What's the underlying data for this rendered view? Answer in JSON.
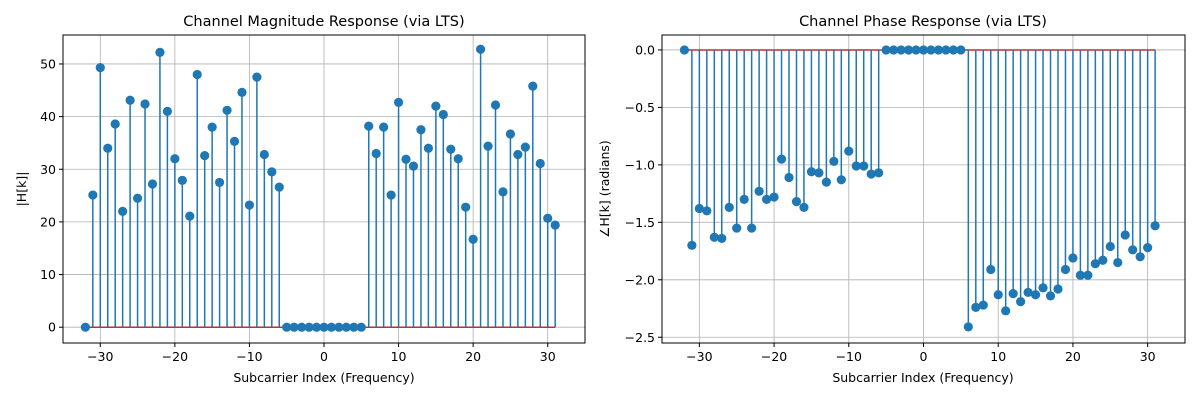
{
  "colors": {
    "stem": "#1f77b4",
    "marker": "#1f77b4",
    "baseline": "#d62728",
    "grid": "#b0b0b0"
  },
  "chart_data": [
    {
      "type": "stem",
      "title": "Channel Magnitude Response (via LTS)",
      "xlabel": "Subcarrier Index (Frequency)",
      "ylabel": "|H[k]|",
      "xlim": [
        -35,
        35
      ],
      "ylim": [
        -3,
        55.5
      ],
      "xticks": [
        -30,
        -20,
        -10,
        0,
        10,
        20,
        30
      ],
      "yticks": [
        0,
        10,
        20,
        30,
        40,
        50
      ],
      "ytick_labels": [
        "0",
        "10",
        "20",
        "30",
        "40",
        "50"
      ],
      "grid": true,
      "baseline": 0,
      "x": [
        -32,
        -31,
        -30,
        -29,
        -28,
        -27,
        -26,
        -25,
        -24,
        -23,
        -22,
        -21,
        -20,
        -19,
        -18,
        -17,
        -16,
        -15,
        -14,
        -13,
        -12,
        -11,
        -10,
        -9,
        -8,
        -7,
        -6,
        -5,
        -4,
        -3,
        -2,
        -1,
        0,
        1,
        2,
        3,
        4,
        5,
        6,
        7,
        8,
        9,
        10,
        11,
        12,
        13,
        14,
        15,
        16,
        17,
        18,
        19,
        20,
        21,
        22,
        23,
        24,
        25,
        26,
        27,
        28,
        29,
        30,
        31
      ],
      "values": [
        0,
        25.1,
        49.3,
        34.0,
        38.6,
        22.0,
        43.1,
        24.5,
        42.4,
        27.2,
        52.2,
        41.0,
        32.0,
        27.9,
        21.1,
        48.0,
        32.6,
        38.0,
        27.5,
        41.2,
        35.3,
        44.6,
        23.2,
        47.5,
        32.8,
        29.5,
        26.6,
        0,
        0,
        0,
        0,
        0,
        0,
        0,
        0,
        0,
        0,
        0,
        38.2,
        33.0,
        38.0,
        25.1,
        42.7,
        31.9,
        30.6,
        37.5,
        34.0,
        42.0,
        40.4,
        33.8,
        32.0,
        22.8,
        16.7,
        52.8,
        34.4,
        42.2,
        25.7,
        36.7,
        32.8,
        34.2,
        45.8,
        31.1,
        20.7,
        19.4
      ]
    },
    {
      "type": "stem",
      "title": "Channel Phase Response (via LTS)",
      "xlabel": "Subcarrier Index (Frequency)",
      "ylabel": "∠H[k] (radians)",
      "xlim": [
        -35,
        35
      ],
      "ylim": [
        -2.55,
        0.13
      ],
      "xticks": [
        -30,
        -20,
        -10,
        0,
        10,
        20,
        30
      ],
      "yticks": [
        0.0,
        -0.5,
        -1.0,
        -1.5,
        -2.0,
        -2.5
      ],
      "ytick_labels": [
        "0.0",
        "−0.5",
        "−1.0",
        "−1.5",
        "−2.0",
        "−2.5"
      ],
      "grid": true,
      "baseline": 0,
      "x": [
        -32,
        -31,
        -30,
        -29,
        -28,
        -27,
        -26,
        -25,
        -24,
        -23,
        -22,
        -21,
        -20,
        -19,
        -18,
        -17,
        -16,
        -15,
        -14,
        -13,
        -12,
        -11,
        -10,
        -9,
        -8,
        -7,
        -6,
        -5,
        -4,
        -3,
        -2,
        -1,
        0,
        1,
        2,
        3,
        4,
        5,
        6,
        7,
        8,
        9,
        10,
        11,
        12,
        13,
        14,
        15,
        16,
        17,
        18,
        19,
        20,
        21,
        22,
        23,
        24,
        25,
        26,
        27,
        28,
        29,
        30,
        31
      ],
      "values": [
        0,
        -1.7,
        -1.38,
        -1.4,
        -1.63,
        -1.64,
        -1.37,
        -1.55,
        -1.3,
        -1.55,
        -1.23,
        -1.3,
        -1.28,
        -0.95,
        -1.11,
        -1.32,
        -1.37,
        -1.06,
        -1.07,
        -1.15,
        -0.97,
        -1.13,
        -0.88,
        -1.01,
        -1.01,
        -1.08,
        -1.07,
        0,
        0,
        0,
        0,
        0,
        0,
        0,
        0,
        0,
        0,
        0,
        -2.41,
        -2.24,
        -2.22,
        -1.91,
        -2.13,
        -2.27,
        -2.12,
        -2.19,
        -2.11,
        -2.13,
        -2.07,
        -2.14,
        -2.08,
        -1.91,
        -1.81,
        -1.96,
        -1.96,
        -1.86,
        -1.83,
        -1.71,
        -1.85,
        -1.61,
        -1.74,
        -1.8,
        -1.72,
        -1.53
      ]
    }
  ]
}
